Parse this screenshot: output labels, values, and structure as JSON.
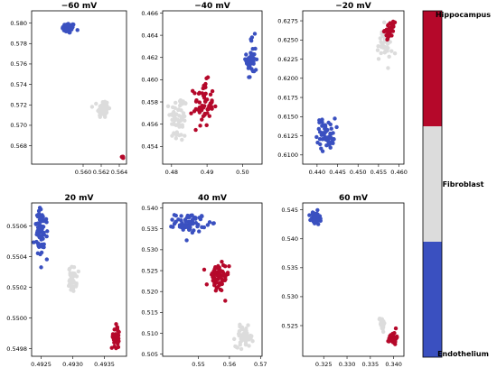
{
  "colors": {
    "Endothelium": "#3a50c0",
    "Fibroblast": "#dcdcdc",
    "Hippocampus": "#b5082a"
  },
  "chart_data": {
    "type": "scatter",
    "panels": [
      {
        "title": "−60 mV",
        "xticks": [
          "0.560",
          "0.562",
          "0.564"
        ],
        "yticks": [
          "0.580",
          "0.578",
          "0.576",
          "0.574",
          "0.572",
          "0.570",
          "0.568"
        ],
        "xlim": [
          0.5543,
          0.5648
        ],
        "ylim": [
          0.5662,
          0.5812
        ],
        "clusters": [
          {
            "class": "Endothelium",
            "cx": 0.5584,
            "cy": 0.5795,
            "sx": 0.00035,
            "sy": 0.00025,
            "n": 70
          },
          {
            "class": "Fibroblast",
            "cx": 0.5622,
            "cy": 0.5716,
            "sx": 0.0003,
            "sy": 0.00045,
            "n": 60
          },
          {
            "class": "Hippocampus",
            "cx": 0.5644,
            "cy": 0.5669,
            "sx": 8e-05,
            "sy": 7e-05,
            "n": 8
          }
        ]
      },
      {
        "title": "−40 mV",
        "xticks": [
          "0.48",
          "0.49",
          "0.50"
        ],
        "yticks": [
          "0.466",
          "0.464",
          "0.462",
          "0.460",
          "0.458",
          "0.456",
          "0.454"
        ],
        "xlim": [
          0.4775,
          0.5055
        ],
        "ylim": [
          0.4524,
          0.4662
        ],
        "clusters": [
          {
            "class": "Fibroblast",
            "cx": 0.482,
            "cy": 0.4565,
            "sx": 0.0012,
            "sy": 0.0011,
            "n": 60
          },
          {
            "class": "Hippocampus",
            "cx": 0.489,
            "cy": 0.4578,
            "sx": 0.0014,
            "sy": 0.001,
            "n": 60
          },
          {
            "class": "Endothelium",
            "cx": 0.5025,
            "cy": 0.4618,
            "sx": 0.0007,
            "sy": 0.001,
            "n": 45
          }
        ]
      },
      {
        "title": "−20 mV",
        "xticks": [
          "0.440",
          "0.445",
          "0.450",
          "0.455",
          "0.460"
        ],
        "yticks": [
          "0.6275",
          "0.6250",
          "0.6225",
          "0.6200",
          "0.6175",
          "0.6150",
          "0.6125",
          "0.6100"
        ],
        "xlim": [
          0.4365,
          0.4612
        ],
        "ylim": [
          0.6088,
          0.6288
        ],
        "clusters": [
          {
            "class": "Endothelium",
            "cx": 0.4422,
            "cy": 0.6128,
            "sx": 0.0011,
            "sy": 0.001,
            "n": 55
          },
          {
            "class": "Fibroblast",
            "cx": 0.4565,
            "cy": 0.6245,
            "sx": 0.0009,
            "sy": 0.0011,
            "n": 50
          },
          {
            "class": "Hippocampus",
            "cx": 0.4577,
            "cy": 0.6263,
            "sx": 0.0006,
            "sy": 0.0005,
            "n": 35
          }
        ]
      },
      {
        "title": "20 mV",
        "xticks": [
          "0.4925",
          "0.4930",
          "0.4935"
        ],
        "yticks": [
          "0.5506",
          "0.5504",
          "0.5502",
          "0.5500",
          "0.5498"
        ],
        "xlim": [
          0.49235,
          0.49385
        ],
        "ylim": [
          0.54975,
          0.55075
        ],
        "clusters": [
          {
            "class": "Endothelium",
            "cx": 0.4925,
            "cy": 0.55055,
            "sx": 5e-05,
            "sy": 8e-05,
            "n": 75
          },
          {
            "class": "Fibroblast",
            "cx": 0.493,
            "cy": 0.55025,
            "sx": 3e-05,
            "sy": 4e-05,
            "n": 45
          },
          {
            "class": "Hippocampus",
            "cx": 0.49368,
            "cy": 0.54988,
            "sx": 3e-05,
            "sy": 4e-05,
            "n": 35
          }
        ]
      },
      {
        "title": "40 mV",
        "xticks": [
          "0.55",
          "0.56",
          "0.57"
        ],
        "yticks": [
          "0.540",
          "0.535",
          "0.530",
          "0.525",
          "0.520",
          "0.515",
          "0.510",
          "0.505"
        ],
        "xlim": [
          0.5385,
          0.5705
        ],
        "ylim": [
          0.5045,
          0.5412
        ],
        "clusters": [
          {
            "class": "Endothelium",
            "cx": 0.5475,
            "cy": 0.5365,
            "sx": 0.0025,
            "sy": 0.0011,
            "n": 70
          },
          {
            "class": "Hippocampus",
            "cx": 0.5562,
            "cy": 0.5232,
            "sx": 0.0018,
            "sy": 0.0018,
            "n": 60
          },
          {
            "class": "Fibroblast",
            "cx": 0.5648,
            "cy": 0.5092,
            "sx": 0.0014,
            "sy": 0.0012,
            "n": 55
          }
        ]
      },
      {
        "title": "60 mV",
        "xticks": [
          "0.325",
          "0.330",
          "0.335",
          "0.340"
        ],
        "yticks": [
          "0.545",
          "0.540",
          "0.535",
          "0.530",
          "0.525"
        ],
        "xlim": [
          0.3205,
          0.3422
        ],
        "ylim": [
          0.5197,
          0.5462
        ],
        "clusters": [
          {
            "class": "Endothelium",
            "cx": 0.3232,
            "cy": 0.5435,
            "sx": 0.0005,
            "sy": 0.0006,
            "n": 50
          },
          {
            "class": "Fibroblast",
            "cx": 0.3375,
            "cy": 0.5255,
            "sx": 0.0003,
            "sy": 0.0006,
            "n": 30
          },
          {
            "class": "Hippocampus",
            "cx": 0.3398,
            "cy": 0.5228,
            "sx": 0.0004,
            "sy": 0.0005,
            "n": 35
          }
        ]
      }
    ],
    "colorbar": {
      "labels": [
        "Hippocampus",
        "Fibroblast",
        "Endothelium"
      ]
    }
  }
}
